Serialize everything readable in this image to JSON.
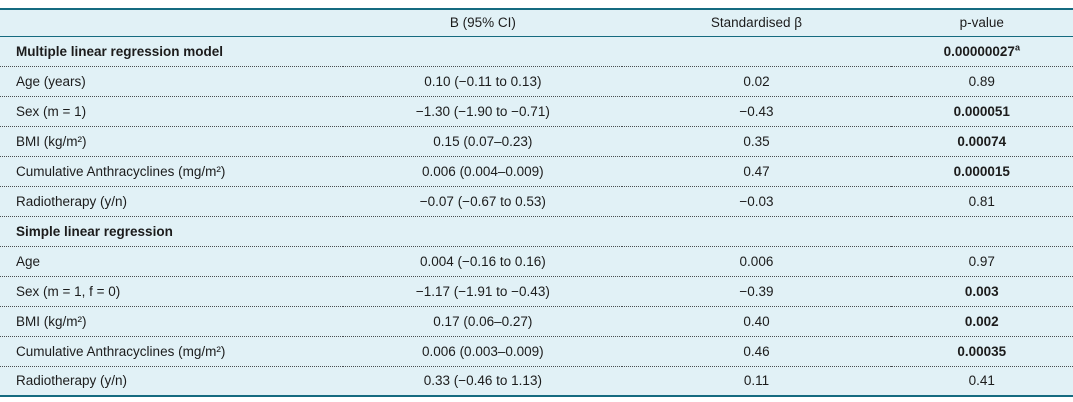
{
  "table": {
    "columns": [
      "",
      "B (95% CI)",
      "Standardised β",
      "p-value"
    ],
    "rows": [
      {
        "label": "Multiple linear regression model",
        "b_ci": "",
        "std_beta": "",
        "p": "0.00000027",
        "p_sup": "a"
      },
      {
        "label": "Age (years)",
        "b_ci": "0.10 (−0.11 to 0.13)",
        "std_beta": "0.02",
        "p": "0.89"
      },
      {
        "label": "Sex (m = 1)",
        "b_ci": "−1.30 (−1.90 to −0.71)",
        "std_beta": "−0.43",
        "p": "0.000051"
      },
      {
        "label": "BMI (kg/m²)",
        "b_ci": "0.15 (0.07–0.23)",
        "std_beta": "0.35",
        "p": "0.00074"
      },
      {
        "label": "Cumulative Anthracyclines (mg/m²)",
        "b_ci": "0.006 (0.004–0.009)",
        "std_beta": "0.47",
        "p": "0.000015"
      },
      {
        "label": "Radiotherapy (y/n)",
        "b_ci": "−0.07 (−0.67 to 0.53)",
        "std_beta": "−0.03",
        "p": "0.81"
      },
      {
        "label": "Simple linear regression",
        "b_ci": "",
        "std_beta": "",
        "p": ""
      },
      {
        "label": "Age",
        "b_ci": "0.004 (−0.16 to 0.16)",
        "std_beta": "0.006",
        "p": "0.97"
      },
      {
        "label": "Sex (m = 1, f = 0)",
        "b_ci": "−1.17 (−1.91 to −0.43)",
        "std_beta": "−0.39",
        "p": "0.003"
      },
      {
        "label": "BMI (kg/m²)",
        "b_ci": "0.17 (0.06–0.27)",
        "std_beta": "0.40",
        "p": "0.002"
      },
      {
        "label": "Cumulative Anthracyclines (mg/m²)",
        "b_ci": "0.006 (0.003–0.009)",
        "std_beta": "0.46",
        "p": "0.00035"
      },
      {
        "label": "Radiotherapy (y/n)",
        "b_ci": "0.33 (−0.46 to 1.13)",
        "std_beta": "0.11",
        "p": "0.41"
      }
    ],
    "colors": {
      "background": "#e1f1f6",
      "border_teal": "#156b80"
    }
  }
}
